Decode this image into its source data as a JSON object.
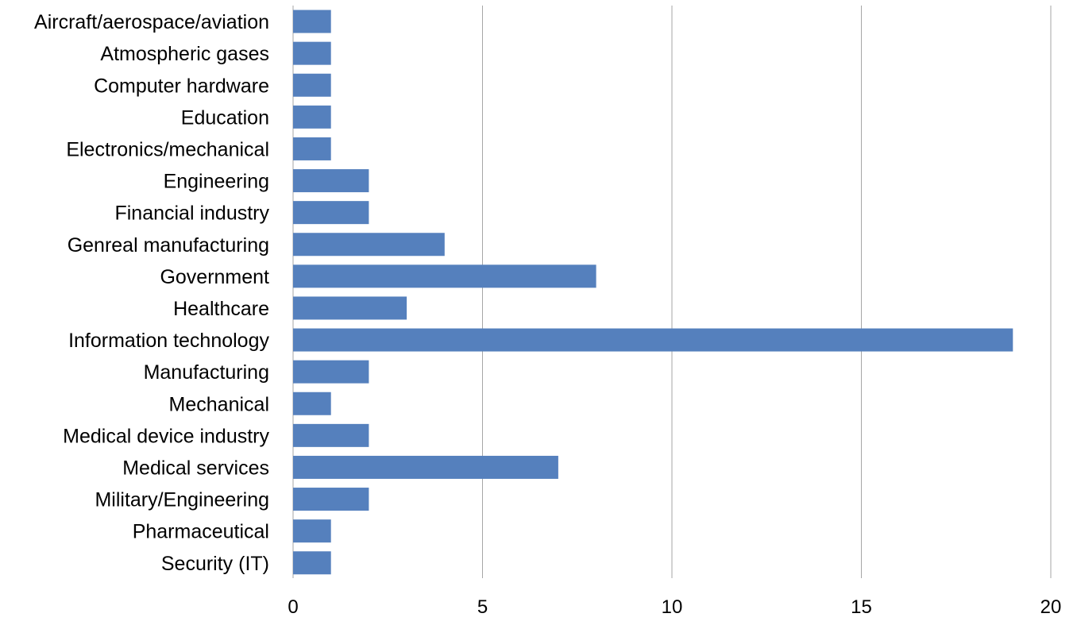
{
  "chart_data": {
    "type": "bar",
    "orientation": "horizontal",
    "title": "",
    "xlabel": "",
    "ylabel": "",
    "categories": [
      "Aircraft/aerospace/aviation",
      "Atmospheric gases",
      "Computer hardware",
      "Education",
      "Electronics/mechanical",
      "Engineering",
      "Financial industry",
      "Genreal manufacturing",
      "Government",
      "Healthcare",
      "Information technology",
      "Manufacturing",
      "Mechanical",
      "Medical device industry",
      "Medical services",
      "Military/Engineering",
      "Pharmaceutical",
      "Security  (IT)"
    ],
    "values": [
      1,
      1,
      1,
      1,
      1,
      2,
      2,
      4,
      8,
      3,
      19,
      2,
      1,
      2,
      7,
      2,
      1,
      1
    ],
    "xlim": [
      0,
      20
    ],
    "xticks": [
      0,
      5,
      10,
      15,
      20
    ],
    "grid": "vertical",
    "legend": "none",
    "colors": {
      "bar": "#5580bd",
      "grid": "#a6a6a6"
    }
  }
}
